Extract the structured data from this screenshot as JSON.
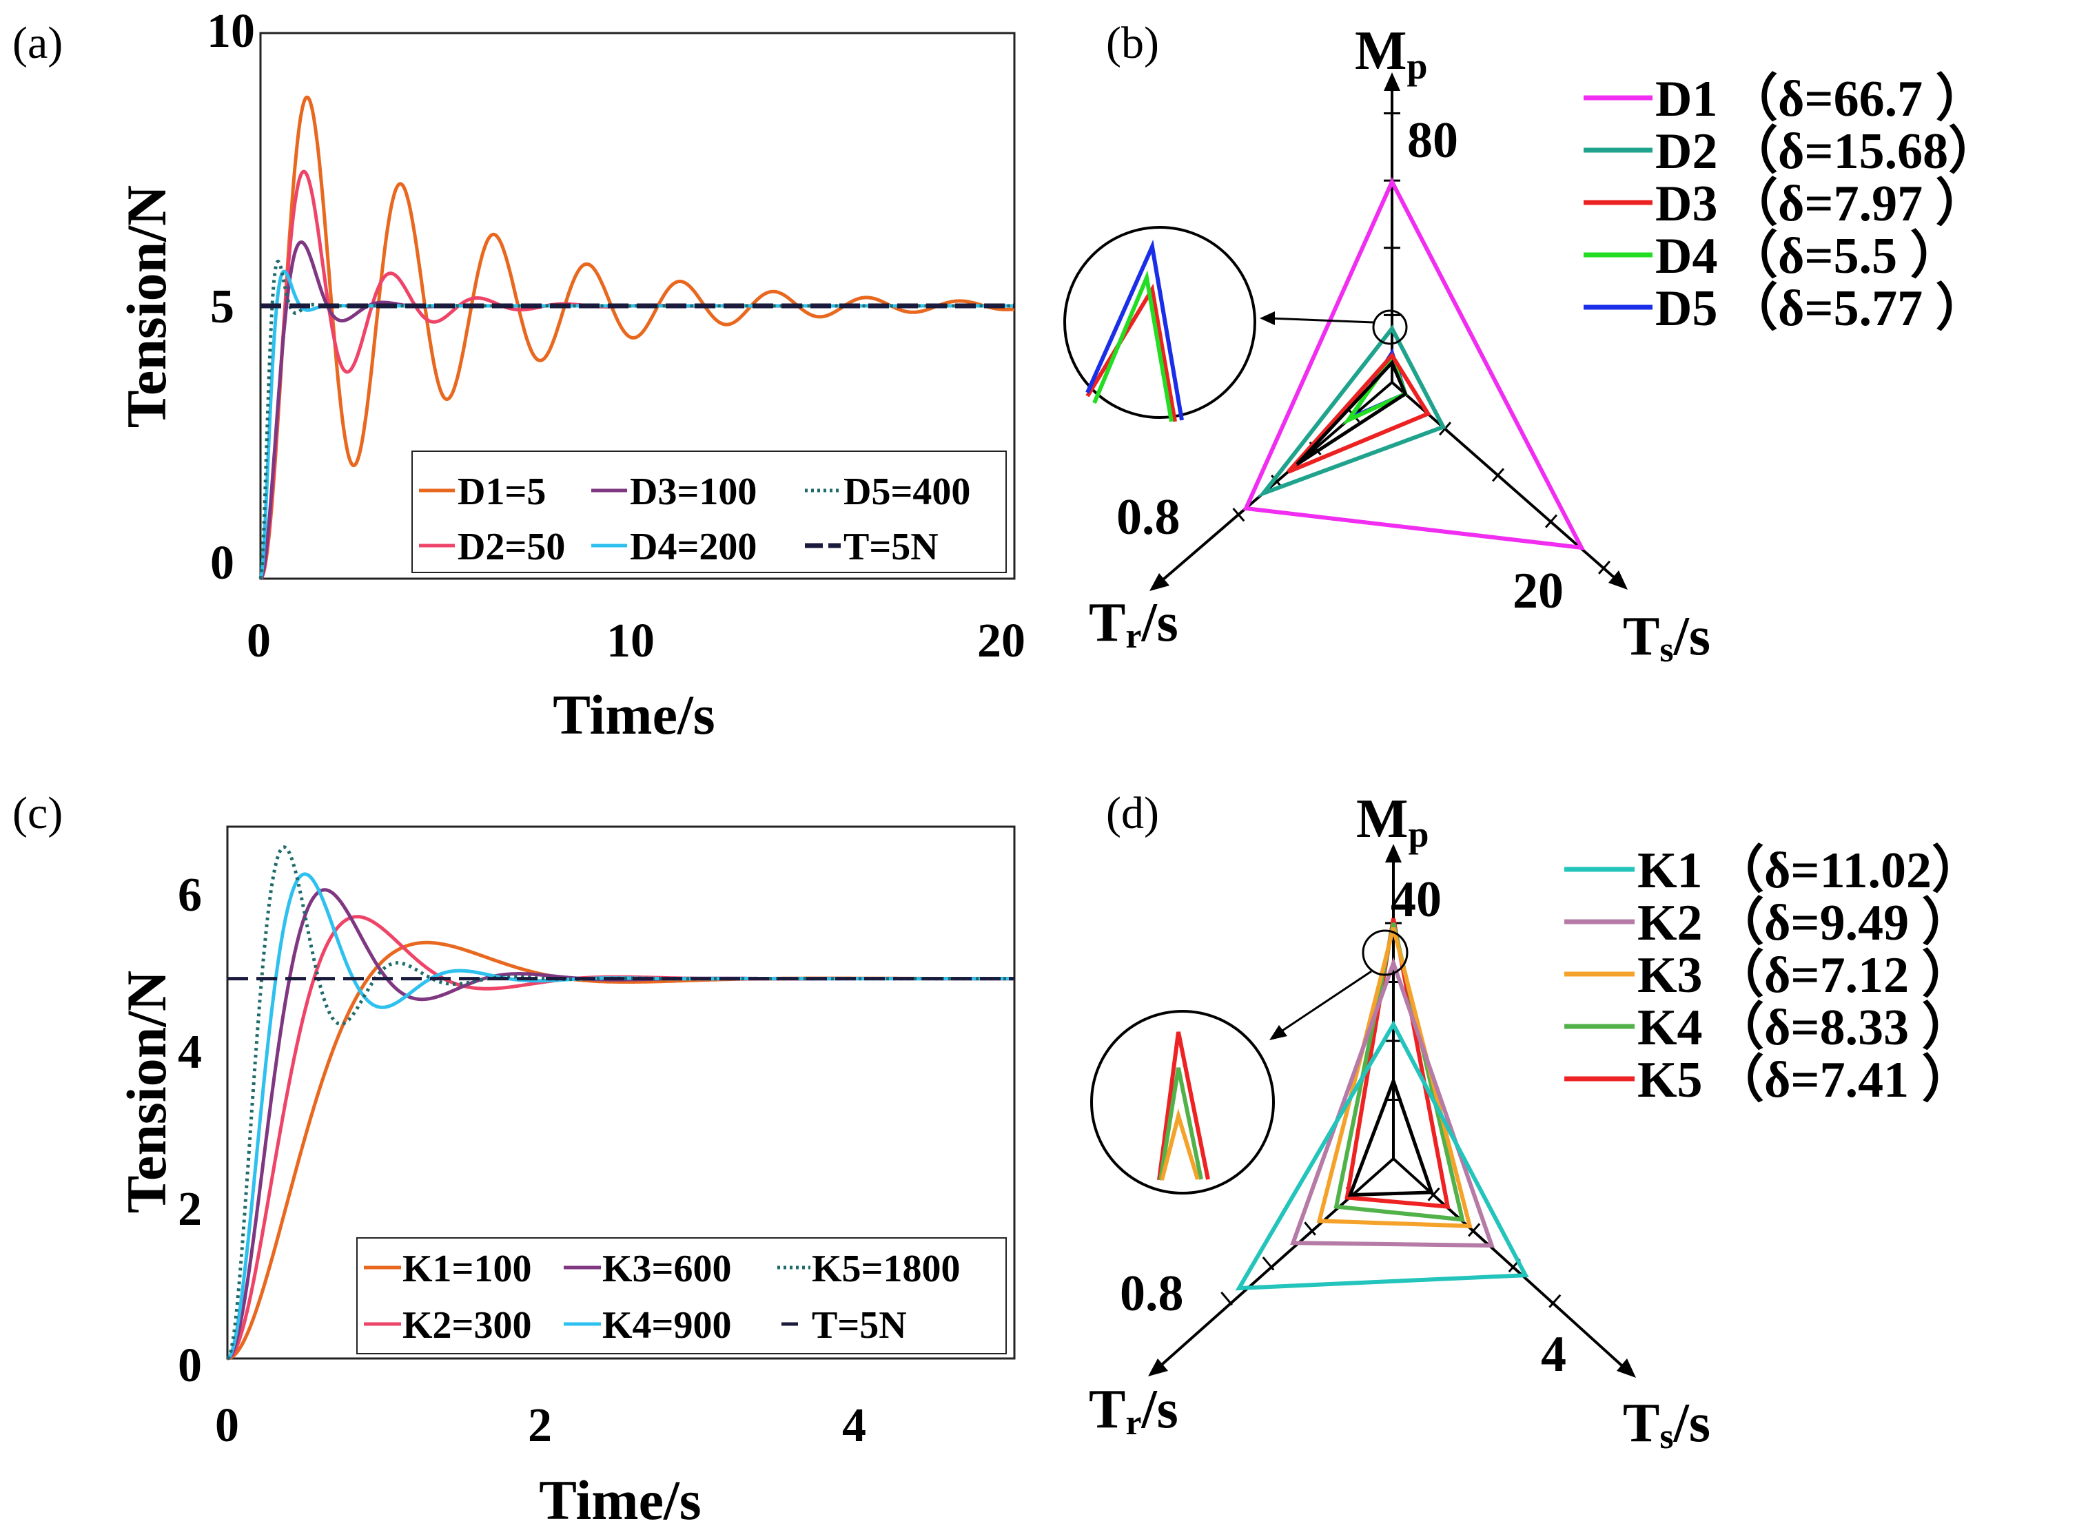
{
  "chart_data": [
    {
      "panel": "(a)",
      "type": "line",
      "xlabel": "Time/s",
      "ylabel": "Tension/N",
      "xlim": [
        0,
        20
      ],
      "ylim": [
        0,
        10
      ],
      "xticks": [
        "0",
        "10",
        "20"
      ],
      "yticks": [
        "0",
        "5",
        "10"
      ],
      "target": 5,
      "series": [
        {
          "name": "D1=5",
          "color": "#e8681f",
          "style": "solid",
          "zeta": 0.085,
          "wn": 2.55,
          "x0": 0,
          "width": 5
        },
        {
          "name": "D2=50",
          "color": "#ee4468",
          "style": "solid",
          "zeta": 0.22,
          "wn": 2.8,
          "x0": 0,
          "width": 5
        },
        {
          "name": "D3=100",
          "color": "#7f3782",
          "style": "solid",
          "zeta": 0.42,
          "wn": 3.2,
          "x0": 0,
          "width": 5
        },
        {
          "name": "D4=200",
          "color": "#2ec0ee",
          "style": "solid",
          "zeta": 0.55,
          "wn": 6.0,
          "x0": 0,
          "width": 5
        },
        {
          "name": "D5=400",
          "color": "#1f6b6b",
          "style": "dotted",
          "zeta": 0.5,
          "wn": 7.8,
          "x0": 0,
          "width": 5
        },
        {
          "name": "T=5N",
          "color": "#1a1a3c",
          "style": "dashed",
          "constant": 5,
          "width": 7
        }
      ],
      "legend": {
        "rows": [
          [
            "D1=5",
            "D3=100",
            "D5=400"
          ],
          [
            "D2=50",
            "D4=200",
            "T=5N"
          ]
        ]
      }
    },
    {
      "panel": "(b)",
      "type": "radar",
      "axes": [
        "Mp",
        "Tr/s",
        "Ts/s"
      ],
      "axis_max_labels": [
        "80",
        "0.8",
        "20"
      ],
      "series": [
        {
          "name": "D1",
          "delta": "（δ=66.7 ）",
          "color": "#f02df0",
          "r": [
            0.82,
            1.0,
            1.0
          ]
        },
        {
          "name": "D2",
          "delta": "（δ=15.68）",
          "color": "#1fa38c",
          "r": [
            0.22,
            0.88,
            0.27
          ]
        },
        {
          "name": "D3",
          "delta": "（δ=7.97 ）",
          "color": "#ec2222",
          "r": [
            0.11,
            0.71,
            0.19
          ]
        },
        {
          "name": "D4",
          "delta": "（δ=5.5  ）",
          "color": "#22dd22",
          "r": [
            0.1,
            0.3,
            0.07
          ]
        },
        {
          "name": "D5",
          "delta": "（δ=5.77 ）",
          "color": "#1a2ee8",
          "r": [
            0.12,
            0.28,
            0.07
          ]
        }
      ],
      "inner": {
        "color": "#000000",
        "r": [
          0.08,
          0.65,
          0.07
        ]
      }
    },
    {
      "panel": "(c)",
      "type": "line",
      "xlabel": "Time/s",
      "ylabel": "Tension/N",
      "xlim": [
        0,
        5
      ],
      "ylim": [
        0,
        7
      ],
      "xticks": [
        "0",
        "2",
        "4"
      ],
      "yticks": [
        "0",
        "2",
        "4",
        "6"
      ],
      "target": 5,
      "series": [
        {
          "name": "K1=100",
          "color": "#e8681f",
          "style": "solid",
          "zeta": 0.6,
          "wn": 3.1,
          "width": 5
        },
        {
          "name": "K2=300",
          "color": "#ee4468",
          "style": "solid",
          "zeta": 0.5,
          "wn": 4.4,
          "width": 5
        },
        {
          "name": "K3=600",
          "color": "#7f3782",
          "style": "solid",
          "zeta": 0.42,
          "wn": 5.6,
          "width": 5
        },
        {
          "name": "K4=900",
          "color": "#2ec0ee",
          "style": "solid",
          "zeta": 0.38,
          "wn": 6.9,
          "width": 5
        },
        {
          "name": "K5=1800",
          "color": "#1f6b6b",
          "style": "dotted",
          "zeta": 0.32,
          "wn": 9.2,
          "width": 5
        },
        {
          "name": "T=5N",
          "color": "#1a1a3c",
          "style": "dashed",
          "constant": 5,
          "width": 5
        }
      ],
      "legend": {
        "rows": [
          [
            "K1=100",
            "K3=600",
            "K5=1800"
          ],
          [
            "K2=300",
            "K4=900",
            "T=5N"
          ]
        ]
      }
    },
    {
      "panel": "(d)",
      "type": "radar",
      "axes": [
        "Mp",
        "Tr/s",
        "Ts/s"
      ],
      "axis_max_labels": [
        "40",
        "0.8",
        "4"
      ],
      "series": [
        {
          "name": "K1",
          "delta": "（δ=11.02）",
          "color": "#22c4bb",
          "r": [
            0.57,
            1.0,
            0.9
          ]
        },
        {
          "name": "K2",
          "delta": "（δ=9.49 ）",
          "color": "#b57aa6",
          "r": [
            0.83,
            0.65,
            0.67
          ]
        },
        {
          "name": "K3",
          "delta": "（δ=7.12 ）",
          "color": "#f5a22a",
          "r": [
            0.98,
            0.48,
            0.52
          ]
        },
        {
          "name": "K4",
          "delta": "（δ=8.33 ）",
          "color": "#52b24a",
          "r": [
            1.0,
            0.37,
            0.47
          ]
        },
        {
          "name": "K5",
          "delta": "（δ=7.41 ）",
          "color": "#ee2222",
          "r": [
            1.02,
            0.3,
            0.37
          ]
        }
      ],
      "inner": {
        "color": "#000000",
        "r": [
          0.33,
          0.28,
          0.26
        ]
      }
    }
  ]
}
